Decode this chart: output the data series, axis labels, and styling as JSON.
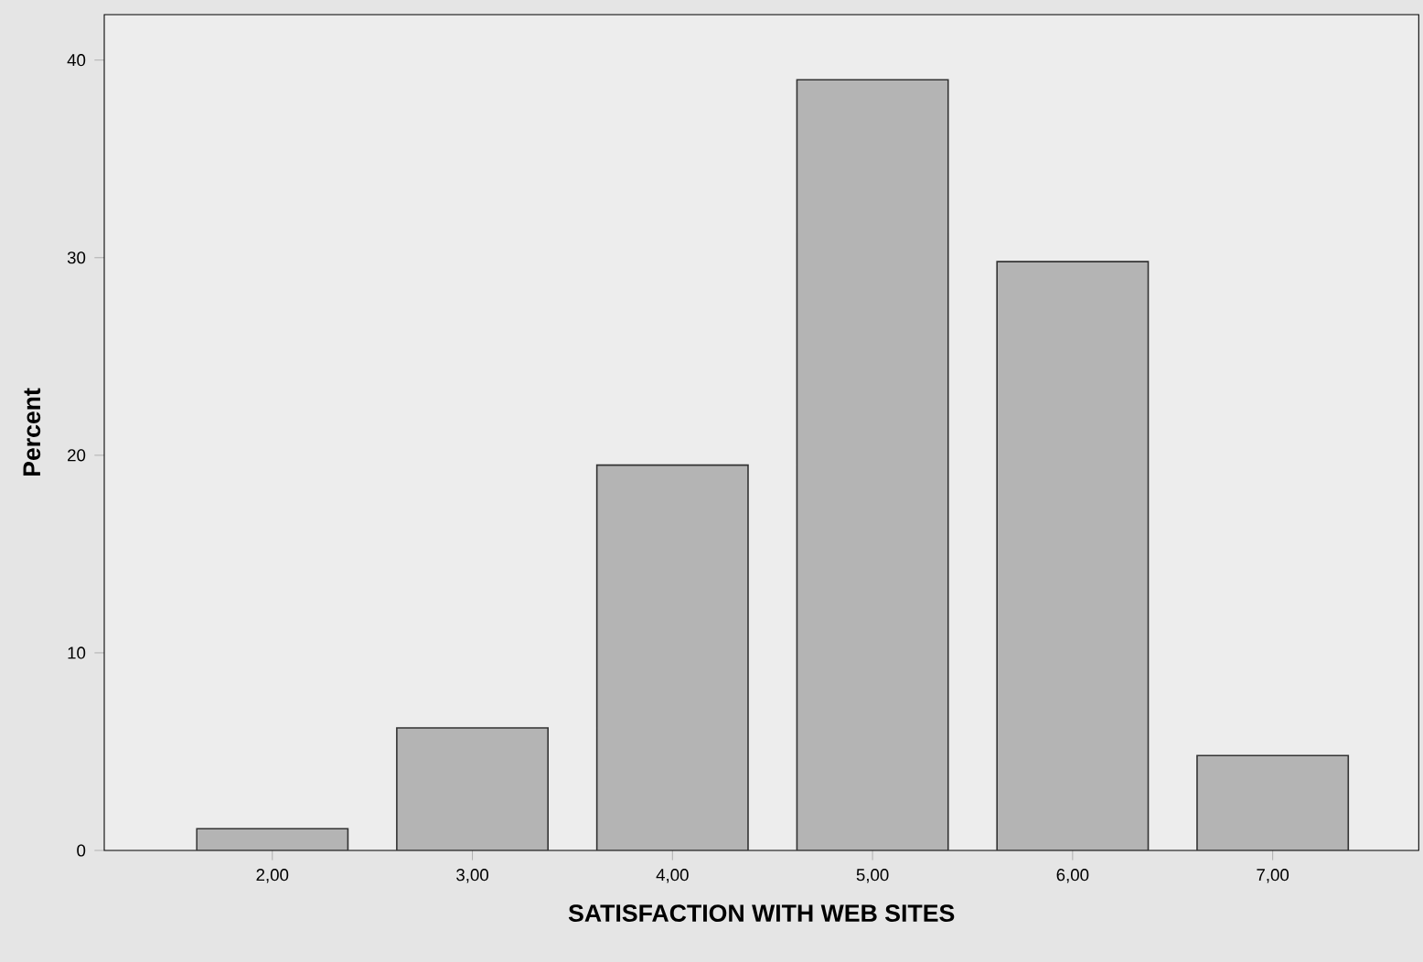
{
  "chart_data": {
    "type": "bar",
    "xlabel": "SATISFACTION WITH WEB SITES",
    "ylabel": "Percent",
    "categories": [
      "2,00",
      "3,00",
      "4,00",
      "5,00",
      "6,00",
      "7,00"
    ],
    "values": [
      1.1,
      6.2,
      19.5,
      39.0,
      29.8,
      4.8
    ],
    "color": "#b4b4b4",
    "ylim": [
      0,
      42.3
    ],
    "yticks": [
      0,
      10,
      20,
      30,
      40
    ],
    "grid": false
  }
}
